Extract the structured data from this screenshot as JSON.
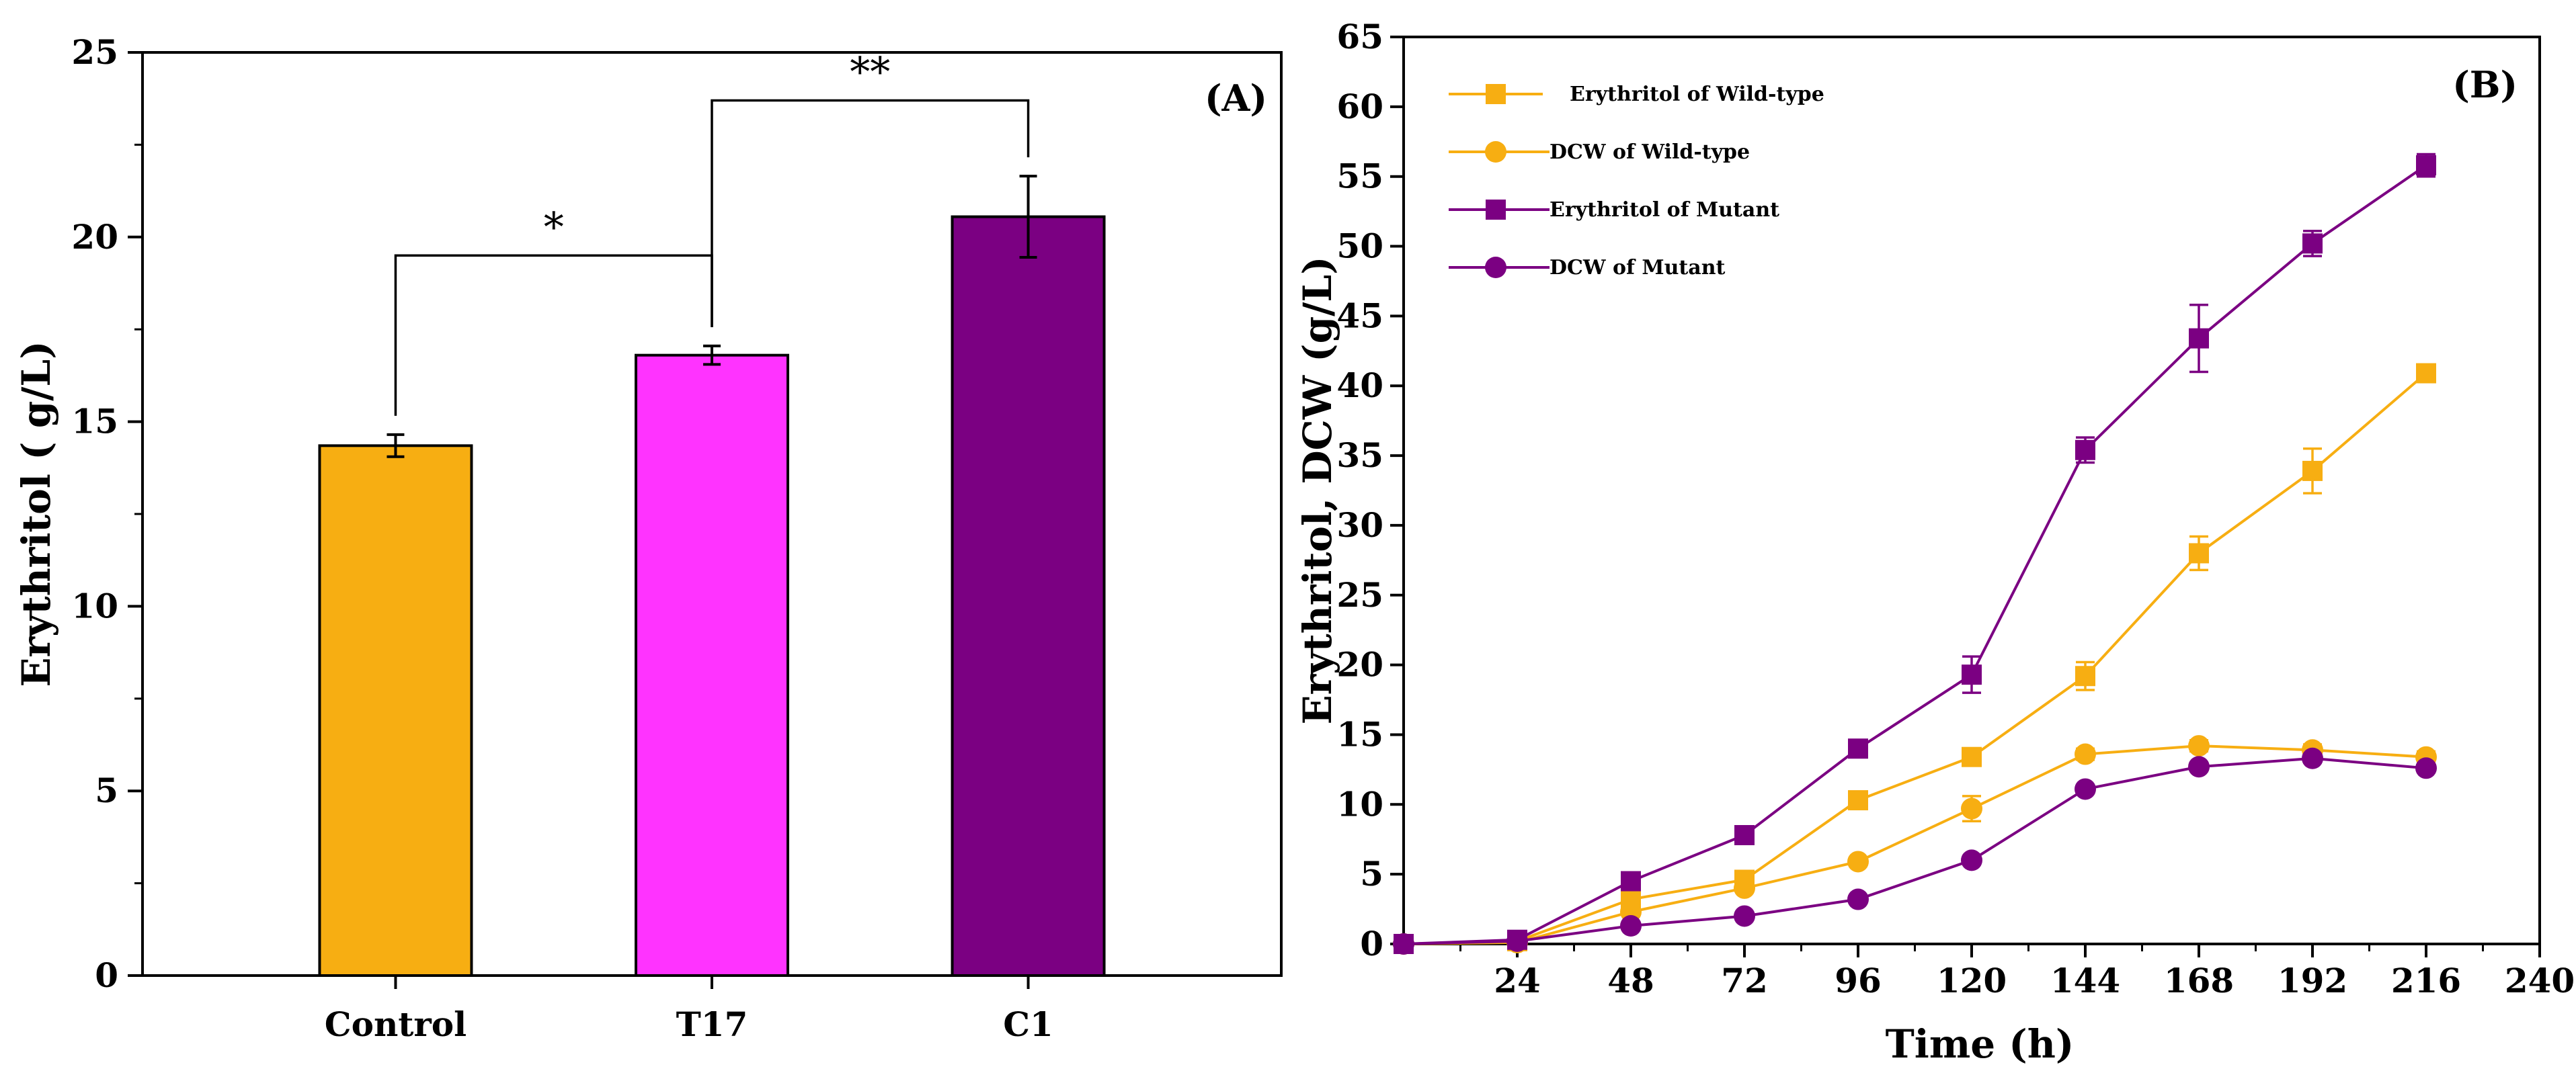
{
  "chart_data": [
    {
      "type": "bar",
      "panel_label": "(A)",
      "title": "",
      "xlabel": "",
      "ylabel": "Erythritol ( g/L)",
      "ylim": [
        0,
        25
      ],
      "yticks": [
        "0",
        "5",
        "10",
        "15",
        "20",
        "25"
      ],
      "categories": [
        "Control",
        "T17",
        "C1"
      ],
      "values": [
        14.35,
        16.8,
        20.55
      ],
      "errors": [
        0.3,
        0.25,
        1.1
      ],
      "colors": [
        "#F7AE12",
        "#FF33FF",
        "#7B0082"
      ],
      "significance": [
        {
          "from": "Control",
          "to": "T17",
          "label": "*"
        },
        {
          "from": "T17",
          "to": "C1",
          "label": "**"
        }
      ]
    },
    {
      "type": "line",
      "panel_label": "(B)",
      "title": "",
      "xlabel": "Time (h)",
      "ylabel": "Erythritol,  DCW (g/L)",
      "xlim": [
        0,
        240
      ],
      "ylim": [
        0,
        65
      ],
      "xticks": [
        "24",
        "48",
        "72",
        "96",
        "120",
        "144",
        "168",
        "192",
        "216",
        "240"
      ],
      "yticks": [
        "0",
        "5",
        "10",
        "15",
        "20",
        "25",
        "30",
        "35",
        "40",
        "45",
        "50",
        "55",
        "60",
        "65"
      ],
      "x": [
        0,
        24,
        48,
        72,
        96,
        120,
        144,
        168,
        192,
        216
      ],
      "legend_position": "top-left",
      "series": [
        {
          "name": "Erythritol of Wild-type",
          "color": "#F7AE12",
          "marker": "square",
          "values": [
            0,
            0.2,
            3.2,
            4.6,
            10.3,
            13.4,
            19.2,
            28.0,
            33.9,
            40.9
          ],
          "errors": [
            0,
            0,
            0.4,
            0.4,
            0.5,
            0.5,
            1.0,
            1.2,
            1.6,
            0.6
          ]
        },
        {
          "name": "DCW of Wild-type",
          "color": "#F7AE12",
          "marker": "circle",
          "values": [
            0,
            0.1,
            2.3,
            4.0,
            5.9,
            9.7,
            13.6,
            14.2,
            13.9,
            13.4
          ],
          "errors": [
            0,
            0,
            0.3,
            0.3,
            0.3,
            0.9,
            0.4,
            0.4,
            0.4,
            0.4
          ]
        },
        {
          "name": "Erythritol of Mutant",
          "color": "#7B0082",
          "marker": "square",
          "values": [
            0,
            0.3,
            4.5,
            7.8,
            14.0,
            19.3,
            35.4,
            43.4,
            50.2,
            55.8
          ],
          "errors": [
            0,
            0,
            0.3,
            0.5,
            0.4,
            1.3,
            0.9,
            2.4,
            0.9,
            0.8
          ]
        },
        {
          "name": "DCW of Mutant",
          "color": "#7B0082",
          "marker": "circle",
          "values": [
            0,
            0.2,
            1.3,
            2.0,
            3.2,
            6.0,
            11.1,
            12.7,
            13.3,
            12.6
          ],
          "errors": [
            0,
            0,
            0.2,
            0.2,
            0.2,
            0.3,
            0.3,
            0.3,
            0.3,
            0.3
          ]
        }
      ]
    }
  ]
}
